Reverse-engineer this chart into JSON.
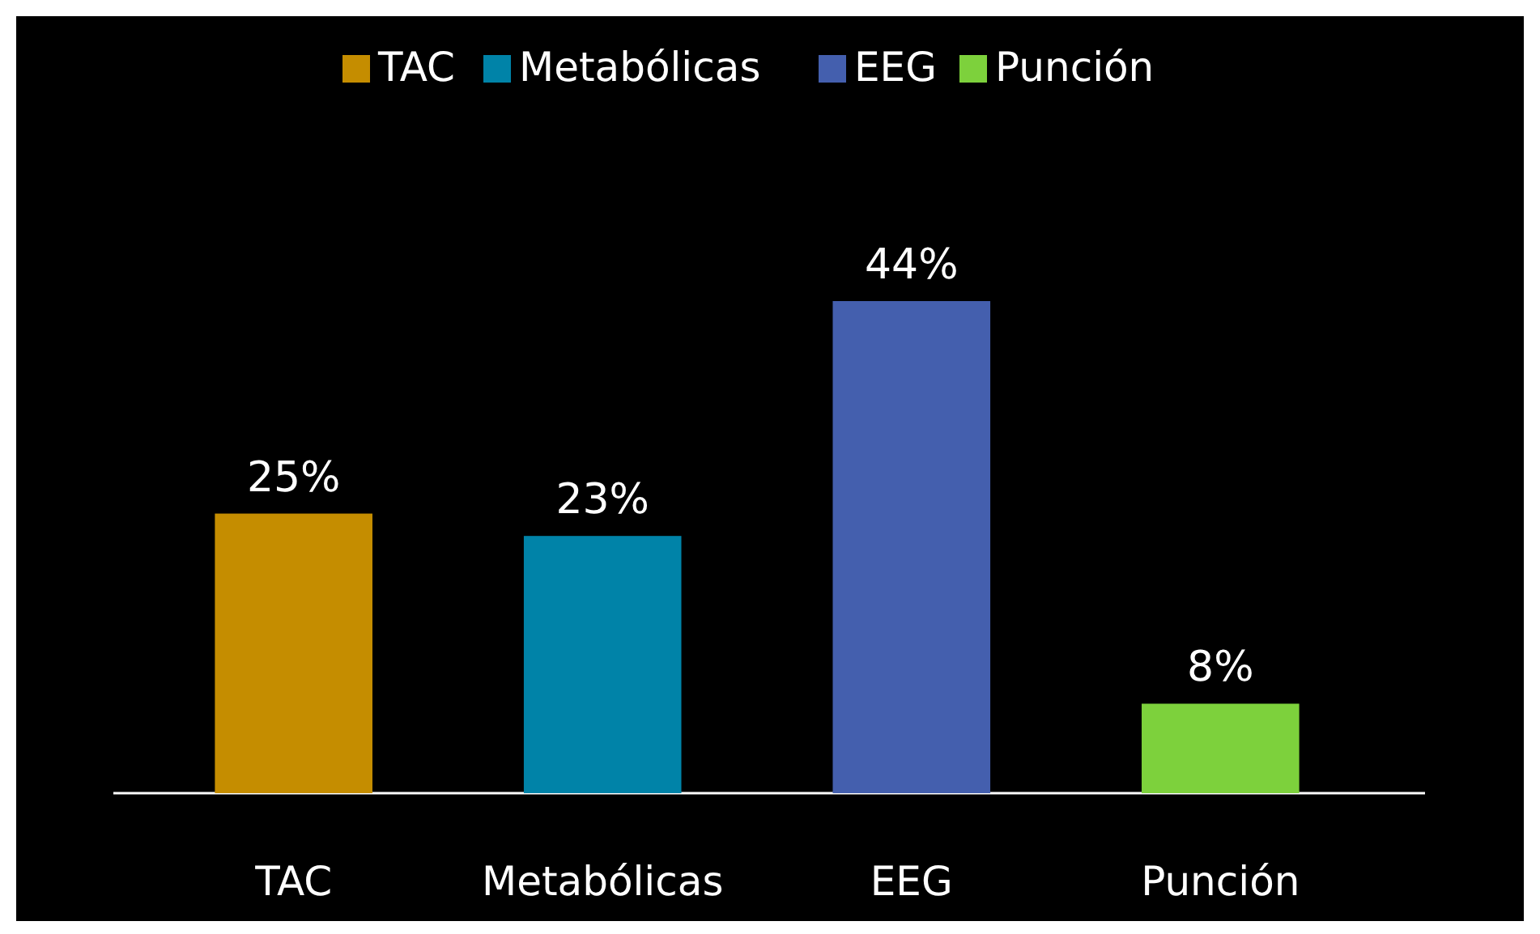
{
  "chart_data": {
    "type": "bar",
    "categories": [
      "TAC",
      "Metabólicas",
      "EEG",
      "Punción"
    ],
    "stacked": true,
    "legend": "top",
    "series": [
      {
        "name": "TAC",
        "color": "#c58d00",
        "values": [
          25,
          null,
          null,
          null
        ],
        "value_labels": [
          "25%",
          null,
          null,
          null
        ]
      },
      {
        "name": "Metabólicas",
        "color": "#0083a8",
        "values": [
          null,
          23,
          null,
          null
        ],
        "value_labels": [
          null,
          "23%",
          null,
          null
        ]
      },
      {
        "name": "EEG",
        "color": "#445fae",
        "values": [
          null,
          null,
          44,
          null
        ],
        "value_labels": [
          null,
          null,
          "44%",
          null
        ]
      },
      {
        "name": "Punción",
        "color": "#7dd13c",
        "values": [
          null,
          null,
          null,
          8
        ],
        "value_labels": [
          null,
          null,
          null,
          "8%"
        ]
      }
    ]
  }
}
